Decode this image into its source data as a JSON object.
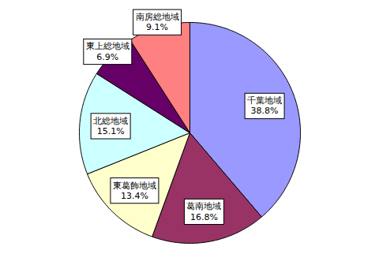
{
  "chart_data": {
    "type": "pie",
    "categories": [
      "千葉地域",
      "葛南地域",
      "東葛飾地域",
      "北総地域",
      "東上総地域",
      "南房総地域"
    ],
    "values": [
      38.8,
      16.8,
      13.4,
      15.1,
      6.9,
      9.1
    ],
    "value_labels": [
      "38.8%",
      "16.8%",
      "13.4%",
      "15.1%",
      "6.9%",
      "9.1%"
    ],
    "colors": [
      "#9999ff",
      "#993366",
      "#ffffcc",
      "#ccffff",
      "#660066",
      "#ff8080"
    ],
    "data_labels": true
  }
}
